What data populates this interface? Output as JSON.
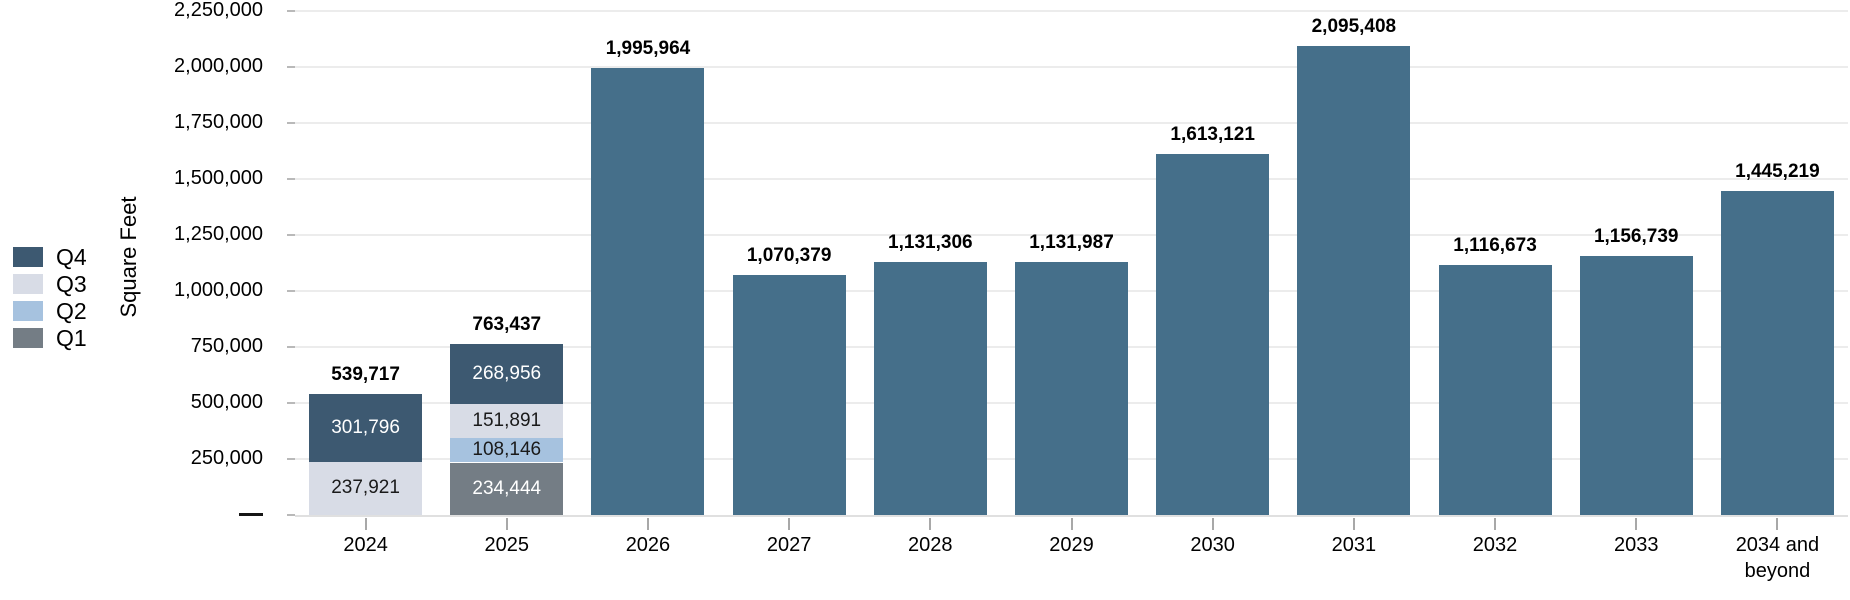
{
  "chart_data": {
    "type": "bar",
    "stacked": true,
    "title": "",
    "xlabel": "",
    "ylabel": "Square Feet",
    "ylim": [
      0,
      2250000
    ],
    "ytick_step": 250000,
    "grid": true,
    "legend_position": "left",
    "y_ticks": [
      {
        "value": 2250000,
        "label": "2,250,000"
      },
      {
        "value": 2000000,
        "label": "2,000,000"
      },
      {
        "value": 1750000,
        "label": "1,750,000"
      },
      {
        "value": 1500000,
        "label": "1,500,000"
      },
      {
        "value": 1250000,
        "label": "1,250,000"
      },
      {
        "value": 1000000,
        "label": "1,000,000"
      },
      {
        "value": 750000,
        "label": "750,000"
      },
      {
        "value": 500000,
        "label": "500,000"
      },
      {
        "value": 250000,
        "label": "250,000"
      },
      {
        "value": 0,
        "label": "—",
        "dash": true
      }
    ],
    "quarters": {
      "Q4": {
        "color": "#3D5971",
        "label_color": "#FFFFFF"
      },
      "Q3": {
        "color": "#D8DCE6",
        "label_color": "#1A1A1A"
      },
      "Q2": {
        "color": "#A6C2DF",
        "label_color": "#1A1A1A"
      },
      "Q1": {
        "color": "#747D85",
        "label_color": "#FFFFFF"
      }
    },
    "legend": [
      "Q4",
      "Q3",
      "Q2",
      "Q1"
    ],
    "single_bar_color": "#456F8A",
    "categories": [
      "2024",
      "2025",
      "2026",
      "2027",
      "2028",
      "2029",
      "2030",
      "2031",
      "2032",
      "2033",
      "2034 and beyond"
    ],
    "bars": [
      {
        "category": "2024",
        "total": 539717,
        "total_label": "539,717",
        "segments": [
          {
            "quarter": "Q3",
            "value": 237921,
            "label": "237,921"
          },
          {
            "quarter": "Q4",
            "value": 301796,
            "label": "301,796"
          }
        ]
      },
      {
        "category": "2025",
        "total": 763437,
        "total_label": "763,437",
        "segments": [
          {
            "quarter": "Q1",
            "value": 234444,
            "label": "234,444"
          },
          {
            "quarter": "Q2",
            "value": 108146,
            "label": "108,146"
          },
          {
            "quarter": "Q3",
            "value": 151891,
            "label": "151,891"
          },
          {
            "quarter": "Q4",
            "value": 268956,
            "label": "268,956"
          }
        ]
      },
      {
        "category": "2026",
        "total": 1995964,
        "total_label": "1,995,964",
        "segments": []
      },
      {
        "category": "2027",
        "total": 1070379,
        "total_label": "1,070,379",
        "segments": []
      },
      {
        "category": "2028",
        "total": 1131306,
        "total_label": "1,131,306",
        "segments": []
      },
      {
        "category": "2029",
        "total": 1131987,
        "total_label": "1,131,987",
        "segments": []
      },
      {
        "category": "2030",
        "total": 1613121,
        "total_label": "1,613,121",
        "segments": []
      },
      {
        "category": "2031",
        "total": 2095408,
        "total_label": "2,095,408",
        "segments": []
      },
      {
        "category": "2032",
        "total": 1116673,
        "total_label": "1,116,673",
        "segments": []
      },
      {
        "category": "2033",
        "total": 1156739,
        "total_label": "1,156,739",
        "segments": []
      },
      {
        "category": "2034 and beyond",
        "total": 1445219,
        "total_label": "1,445,219",
        "segments": []
      }
    ]
  }
}
